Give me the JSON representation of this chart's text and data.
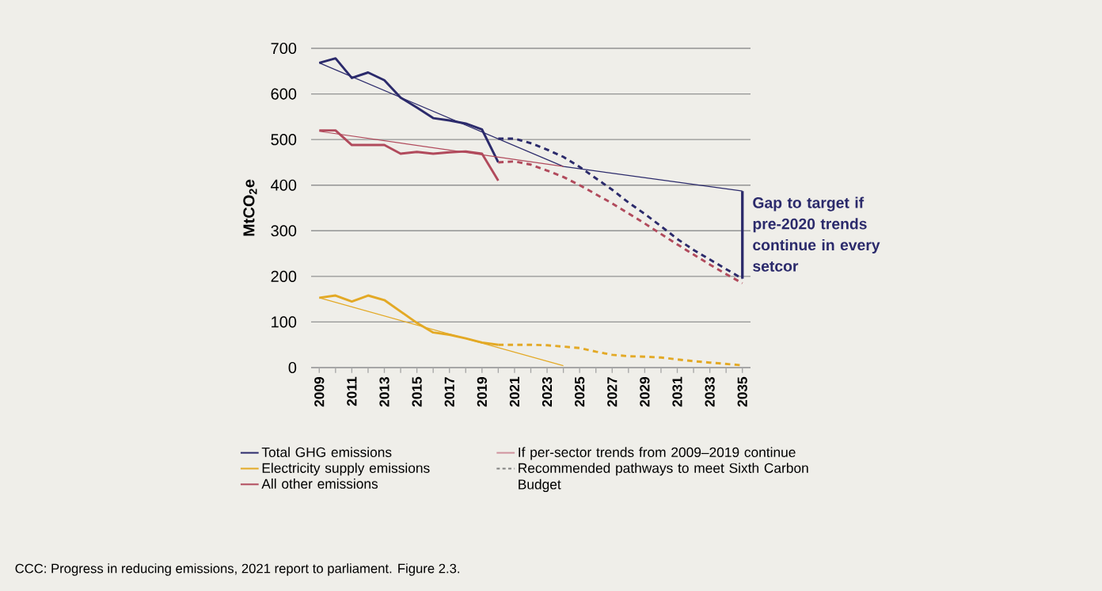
{
  "chart_data": {
    "type": "line",
    "ylabel": "MtCO$_{2}$e",
    "x": [
      2009,
      2010,
      2011,
      2012,
      2013,
      2014,
      2015,
      2016,
      2017,
      2018,
      2019,
      2020
    ],
    "series": [
      {
        "name": "Total GHG emissions",
        "color": "#2b2a6b",
        "values": [
          668,
          678,
          635,
          647,
          630,
          592,
          570,
          547,
          542,
          535,
          522,
          450
        ]
      },
      {
        "name": "Electricity supply emissions",
        "color": "#e3a925",
        "values": [
          153,
          158,
          145,
          158,
          148,
          123,
          98,
          77,
          72,
          64,
          55,
          50
        ]
      },
      {
        "name": "All other emissions",
        "color": "#b14a5c",
        "values": [
          520,
          520,
          488,
          488,
          488,
          469,
          473,
          469,
          472,
          474,
          469,
          410
        ]
      },
      {
        "color": "#2b2a6b",
        "x": [
          2009,
          2024,
          2035
        ],
        "values": [
          668,
          441,
          387
        ]
      },
      {
        "color": "#e3a925",
        "x": [
          2009,
          2024
        ],
        "values": [
          153,
          4
        ]
      },
      {
        "color": "#b14a5c",
        "x": [
          2009,
          2024
        ],
        "values": [
          518,
          441
        ]
      },
      {
        "color": "#2b2a6b",
        "line_style": "dashed",
        "x": [
          2020,
          2021,
          2022,
          2023,
          2024,
          2025,
          2026,
          2027,
          2028,
          2029,
          2030,
          2031,
          2032,
          2033,
          2034,
          2035
        ],
        "values": [
          502,
          502,
          492,
          478,
          462,
          440,
          415,
          390,
          362,
          337,
          310,
          282,
          258,
          237,
          216,
          195
        ]
      },
      {
        "color": "#b14a5c",
        "line_style": "dashed",
        "x": [
          2020,
          2021,
          2022,
          2023,
          2024,
          2025,
          2026,
          2027,
          2028,
          2029,
          2030,
          2031,
          2032,
          2033,
          2034,
          2035
        ],
        "values": [
          450,
          452,
          445,
          432,
          418,
          400,
          380,
          360,
          338,
          316,
          293,
          270,
          248,
          226,
          205,
          185
        ]
      },
      {
        "color": "#e3a925",
        "line_style": "dashed",
        "x": [
          2020,
          2021,
          2022,
          2023,
          2024,
          2025,
          2026,
          2027,
          2028,
          2029,
          2030,
          2031,
          2032,
          2033,
          2034,
          2035
        ],
        "values": [
          50,
          50,
          50,
          49,
          46,
          43,
          35,
          28,
          25,
          24,
          22,
          18,
          14,
          11,
          8,
          5
        ]
      }
    ],
    "xlim": [
      2008.5,
      2035.5
    ],
    "xticks": [
      2009,
      {
        "value": 2010,
        "label": null
      },
      2011,
      {
        "value": 2012,
        "label": null
      },
      2013,
      {
        "value": 2014,
        "label": null
      },
      2015,
      {
        "value": 2016,
        "label": null
      },
      2017,
      {
        "value": 2018,
        "label": null
      },
      2019,
      {
        "value": 2020,
        "label": null
      },
      2021,
      {
        "value": 2022,
        "label": null
      },
      2023,
      {
        "value": 2024,
        "label": null
      },
      2025,
      {
        "value": 2026,
        "label": null
      },
      2027,
      {
        "value": 2028,
        "label": null
      },
      2029,
      {
        "value": 2030,
        "label": null
      },
      2031,
      {
        "value": 2032,
        "label": null
      },
      2033,
      {
        "value": 2034,
        "label": null
      },
      2035
    ],
    "ylim": [
      0,
      700
    ],
    "yticks": [
      0,
      100,
      200,
      300,
      400,
      500,
      600,
      700
    ],
    "grid": "y",
    "legend": "bottom",
    "marker": "none",
    "annotations": [
      {
        "text": "Gap to target if pre-2020 trends continue in every setcor",
        "x": 2035,
        "y": 387
      },
      "If per-sector trends from 2009–2019 continue",
      "Recommended pathways to meet Sixth Carbon Budget",
      "CCC: Progress in reducing emissions, 2021 report to parliament. Figure 2.3."
    ]
  }
}
